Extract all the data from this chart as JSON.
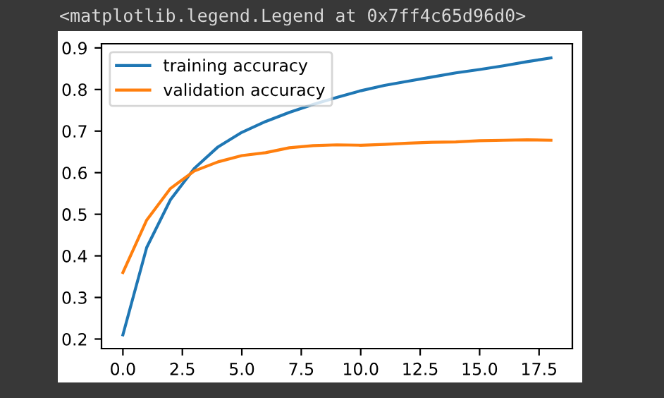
{
  "chart_data": {
    "type": "line",
    "x": [
      0,
      1,
      2,
      3,
      4,
      5,
      6,
      7,
      8,
      9,
      10,
      11,
      12,
      13,
      14,
      15,
      16,
      17,
      18
    ],
    "series": [
      {
        "name": "training accuracy",
        "color": "#1f77b4",
        "values": [
          0.21,
          0.42,
          0.535,
          0.61,
          0.662,
          0.697,
          0.723,
          0.745,
          0.764,
          0.781,
          0.797,
          0.81,
          0.82,
          0.83,
          0.84,
          0.848,
          0.857,
          0.867,
          0.876
        ]
      },
      {
        "name": "validation accuracy",
        "color": "#ff7f0e",
        "values": [
          0.36,
          0.486,
          0.562,
          0.604,
          0.626,
          0.641,
          0.648,
          0.66,
          0.665,
          0.667,
          0.666,
          0.668,
          0.671,
          0.673,
          0.674,
          0.677,
          0.678,
          0.679,
          0.678
        ]
      }
    ],
    "xlim": [
      -0.9,
      18.9
    ],
    "xticks": [
      {
        "value": 0,
        "label": "0.0"
      },
      {
        "value": 2.5,
        "label": "2.5"
      },
      {
        "value": 5,
        "label": "5.0"
      },
      {
        "value": 7.5,
        "label": "7.5"
      },
      {
        "value": 10,
        "label": "10.0"
      },
      {
        "value": 12.5,
        "label": "12.5"
      },
      {
        "value": 15,
        "label": "15.0"
      },
      {
        "value": 17.5,
        "label": "17.5"
      }
    ],
    "ylim": [
      0.177,
      0.91
    ],
    "yticks": [
      0.2,
      0.3,
      0.4,
      0.5,
      0.6,
      0.7,
      0.8,
      0.9
    ],
    "legend": "top left",
    "grid": false,
    "annotations": [
      "<matplotlib.legend.Legend at 0x7ff4c65d96d0>"
    ]
  }
}
